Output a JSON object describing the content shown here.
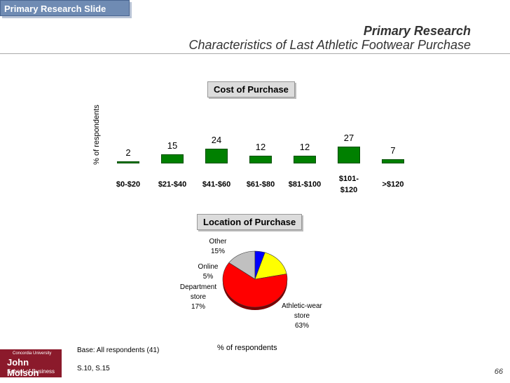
{
  "slide_tag": "Primary Research Slide",
  "header": {
    "title": "Primary Research",
    "subtitle": "Characteristics of Last Athletic Footwear Purchase"
  },
  "chart_data": [
    {
      "type": "bar",
      "title": "Cost of Purchase",
      "ylabel": "% of respondents",
      "xlabel": "",
      "categories": [
        "$0-$20",
        "$21-$40",
        "$41-$60",
        "$61-$80",
        "$81-$100",
        "$101-\n$120",
        ">$120"
      ],
      "values": [
        2,
        15,
        24,
        12,
        12,
        27,
        7
      ],
      "ylim": [
        0,
        27
      ]
    },
    {
      "type": "pie",
      "title": "Location of Purchase",
      "xlabel": "% of respondents",
      "slices": [
        {
          "label": "Athletic-wear store",
          "value": 63,
          "display": "63%",
          "color": "#ff0000"
        },
        {
          "label": "Department store",
          "value": 17,
          "display": "17%",
          "color": "#ffff00"
        },
        {
          "label": "Online",
          "value": 5,
          "display": "5%",
          "color": "#0000ff"
        },
        {
          "label": "Other",
          "value": 15,
          "display": "15%",
          "color": "#c0c0c0"
        }
      ]
    }
  ],
  "footer": {
    "base": "Base: All respondents (41)",
    "source": "S.10, S.15",
    "page_number": "66"
  },
  "logo": {
    "line1": "Concordia University",
    "line2": "John Molson",
    "line3": "School of Business"
  },
  "colors": {
    "bar": "#008000",
    "tag": "#6f8bb3"
  }
}
